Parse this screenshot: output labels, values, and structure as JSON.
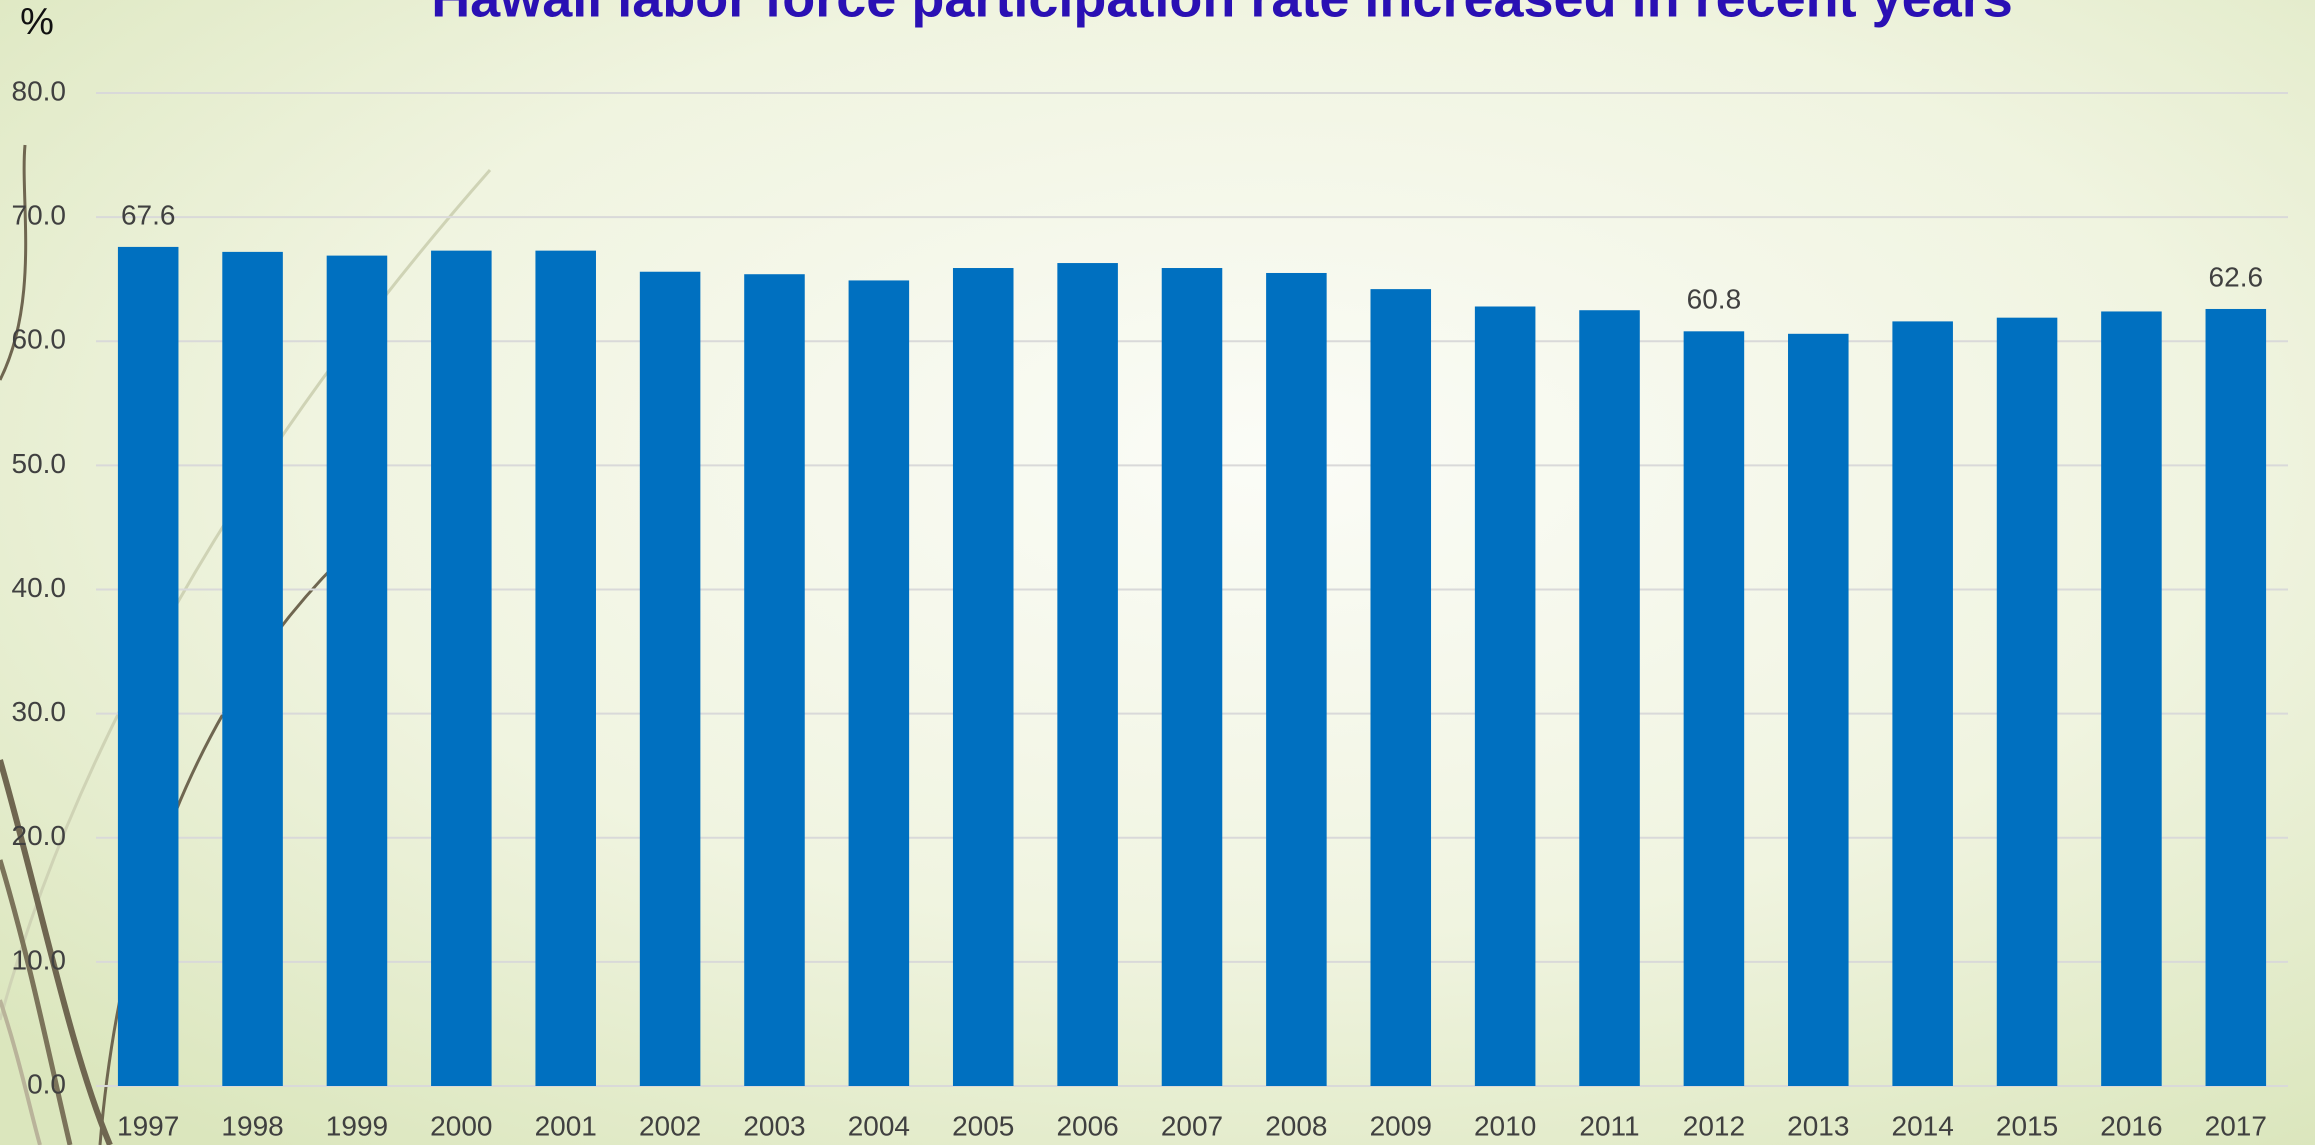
{
  "chart_data": {
    "type": "bar",
    "title": "Hawaii labor force participation rate increased in recent years",
    "y_label": "%",
    "categories": [
      "1997",
      "1998",
      "1999",
      "2000",
      "2001",
      "2002",
      "2003",
      "2004",
      "2005",
      "2006",
      "2007",
      "2008",
      "2009",
      "2010",
      "2011",
      "2012",
      "2013",
      "2014",
      "2015",
      "2016",
      "2017"
    ],
    "values": [
      67.6,
      67.2,
      66.9,
      67.3,
      67.3,
      65.6,
      65.4,
      64.9,
      65.9,
      66.3,
      65.9,
      65.5,
      64.2,
      62.8,
      62.5,
      60.8,
      60.6,
      61.6,
      61.9,
      62.4,
      62.6
    ],
    "value_labels": [
      "67.6",
      null,
      null,
      null,
      null,
      null,
      null,
      null,
      null,
      null,
      null,
      null,
      null,
      null,
      null,
      "60.8",
      null,
      null,
      null,
      null,
      "62.6"
    ],
    "color": "#0070c0",
    "ylim": [
      0,
      80
    ],
    "yticks": [
      {
        "value": 0,
        "label": "0.0"
      },
      {
        "value": 10,
        "label": "10.0"
      },
      {
        "value": 20,
        "label": "20.0"
      },
      {
        "value": 30,
        "label": "30.0"
      },
      {
        "value": 40,
        "label": "40.0"
      },
      {
        "value": 50,
        "label": "50.0"
      },
      {
        "value": 60,
        "label": "60.0"
      },
      {
        "value": 70,
        "label": "70.0"
      },
      {
        "value": 80,
        "label": "80.0"
      }
    ],
    "grid": true
  }
}
